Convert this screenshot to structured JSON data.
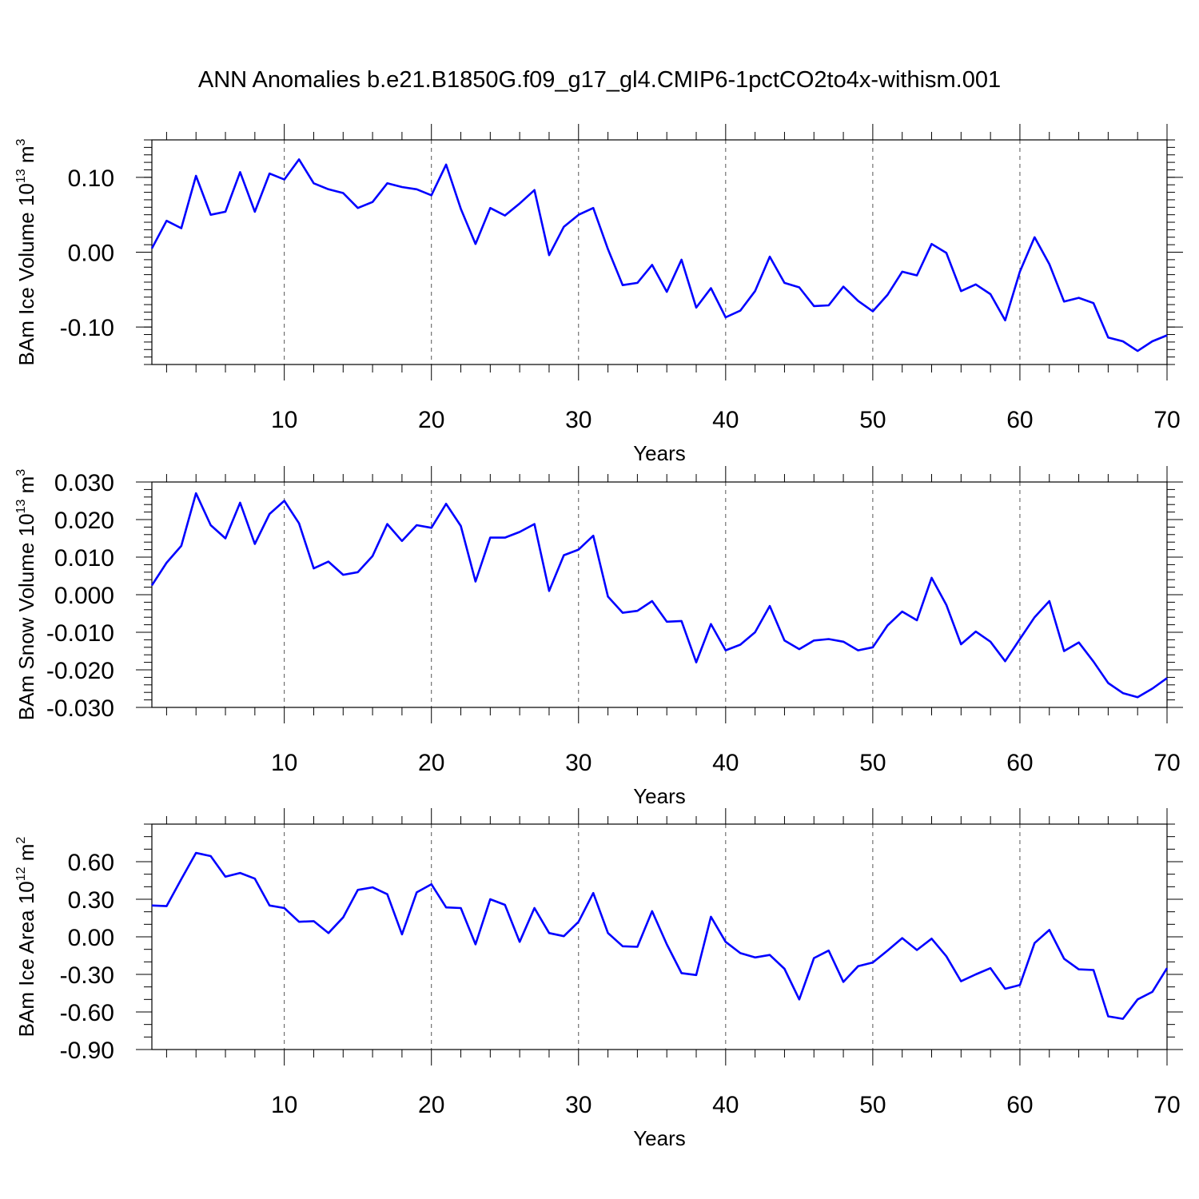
{
  "title": "ANN Anomalies b.e21.B1850G.f09_g17_gl4.CMIP6-1pctCO2to4x-withism.001",
  "colors": {
    "line": "#0000ff",
    "axis": "#000000",
    "grid": "#555555"
  },
  "chart_data": [
    {
      "type": "line",
      "xlabel": "Years",
      "ylabel": {
        "text": "BAm Ice Volume 10",
        "exp": "13",
        "unit": " m",
        "unit_exp": "3"
      },
      "xlim": [
        1,
        70
      ],
      "ylim": [
        -0.15,
        0.15
      ],
      "grid": "vertical dashed at major x ticks",
      "x_ticks": [
        "10",
        "20",
        "30",
        "40",
        "50",
        "60",
        "70"
      ],
      "y_ticks": [
        "0.10",
        "0.00",
        "-0.10"
      ],
      "y_tick_values": [
        0.1,
        0.0,
        -0.1
      ],
      "series": [
        {
          "values": [
            0.005,
            0.042,
            0.032,
            0.102,
            0.05,
            0.054,
            0.107,
            0.054,
            0.105,
            0.097,
            0.124,
            0.092,
            0.084,
            0.079,
            0.059,
            0.067,
            0.092,
            0.087,
            0.084,
            0.076,
            0.117,
            0.058,
            0.011,
            0.059,
            0.049,
            0.065,
            0.083,
            -0.004,
            0.034,
            0.05,
            0.059,
            0.004,
            -0.044,
            -0.041,
            -0.017,
            -0.053,
            -0.01,
            -0.074,
            -0.048,
            -0.087,
            -0.078,
            -0.052,
            -0.006,
            -0.041,
            -0.047,
            -0.072,
            -0.071,
            -0.046,
            -0.065,
            -0.079,
            -0.057,
            -0.026,
            -0.031,
            0.011,
            -0.001,
            -0.052,
            -0.043,
            -0.056,
            -0.091,
            -0.026,
            0.02,
            -0.016,
            -0.066,
            -0.061,
            -0.068,
            -0.114,
            -0.119,
            -0.132,
            -0.119,
            -0.111
          ]
        }
      ]
    },
    {
      "type": "line",
      "xlabel": "Years",
      "ylabel": {
        "text": "BAm Snow Volume 10",
        "exp": "13",
        "unit": " m",
        "unit_exp": "3"
      },
      "xlim": [
        1,
        70
      ],
      "ylim": [
        -0.03,
        0.03
      ],
      "grid": "vertical dashed at major x ticks",
      "x_ticks": [
        "10",
        "20",
        "30",
        "40",
        "50",
        "60",
        "70"
      ],
      "y_ticks": [
        "0.030",
        "0.020",
        "0.010",
        "0.000",
        "-0.010",
        "-0.020",
        "-0.030"
      ],
      "y_tick_values": [
        0.03,
        0.02,
        0.01,
        0.0,
        -0.01,
        -0.02,
        -0.03
      ],
      "series": [
        {
          "values": [
            0.0025,
            0.0085,
            0.013,
            0.027,
            0.0185,
            0.015,
            0.0245,
            0.0135,
            0.0215,
            0.025,
            0.019,
            0.007,
            0.0088,
            0.0053,
            0.006,
            0.0103,
            0.0188,
            0.0143,
            0.0185,
            0.0178,
            0.0242,
            0.0183,
            0.0035,
            0.0152,
            0.0152,
            0.0167,
            0.0188,
            0.001,
            0.0105,
            0.012,
            0.0157,
            -0.0005,
            -0.0048,
            -0.0043,
            -0.0017,
            -0.0072,
            -0.007,
            -0.018,
            -0.0078,
            -0.0148,
            -0.0133,
            -0.01,
            -0.003,
            -0.0122,
            -0.0145,
            -0.0122,
            -0.0118,
            -0.0125,
            -0.0148,
            -0.014,
            -0.0082,
            -0.0045,
            -0.0068,
            0.0045,
            -0.0027,
            -0.0132,
            -0.0098,
            -0.0125,
            -0.0177,
            -0.0118,
            -0.006,
            -0.0017,
            -0.015,
            -0.0127,
            -0.0178,
            -0.0235,
            -0.0262,
            -0.0273,
            -0.025,
            -0.0222
          ]
        }
      ]
    },
    {
      "type": "line",
      "xlabel": "Years",
      "ylabel": {
        "text": "BAm Ice Area 10",
        "exp": "12",
        "unit": " m",
        "unit_exp": "2"
      },
      "xlim": [
        1,
        70
      ],
      "ylim": [
        -0.9,
        0.9
      ],
      "grid": "vertical dashed at major x ticks",
      "x_ticks": [
        "10",
        "20",
        "30",
        "40",
        "50",
        "60",
        "70"
      ],
      "y_ticks": [
        "0.60",
        "0.30",
        "0.00",
        "-0.30",
        "-0.60",
        "-0.90"
      ],
      "y_tick_values": [
        0.6,
        0.3,
        0.0,
        -0.3,
        -0.6,
        -0.9
      ],
      "series": [
        {
          "values": [
            0.25,
            0.245,
            0.46,
            0.67,
            0.645,
            0.48,
            0.51,
            0.465,
            0.25,
            0.23,
            0.12,
            0.125,
            0.03,
            0.155,
            0.375,
            0.395,
            0.34,
            0.02,
            0.355,
            0.42,
            0.235,
            0.23,
            -0.06,
            0.3,
            0.255,
            -0.04,
            0.23,
            0.03,
            0.005,
            0.12,
            0.35,
            0.03,
            -0.075,
            -0.08,
            0.205,
            -0.06,
            -0.29,
            -0.305,
            0.16,
            -0.04,
            -0.13,
            -0.165,
            -0.145,
            -0.255,
            -0.5,
            -0.17,
            -0.11,
            -0.36,
            -0.235,
            -0.205,
            -0.11,
            -0.01,
            -0.105,
            -0.015,
            -0.155,
            -0.355,
            -0.3,
            -0.25,
            -0.415,
            -0.385,
            -0.05,
            0.055,
            -0.175,
            -0.26,
            -0.265,
            -0.635,
            -0.655,
            -0.5,
            -0.44,
            -0.25
          ]
        }
      ]
    }
  ]
}
